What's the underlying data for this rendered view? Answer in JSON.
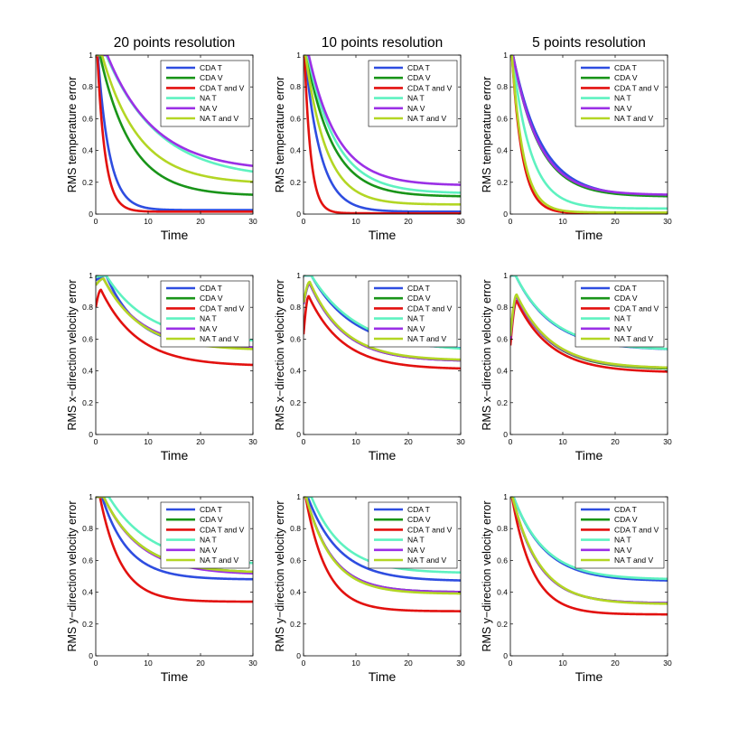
{
  "figure": {
    "column_titles": [
      "20 points resolution",
      "10 points resolution",
      "5 points resolution"
    ],
    "row_ylabels": [
      "RMS temperature error",
      "RMS x−direction velocity error",
      "RMS y−direction velocity error"
    ],
    "xlabel": "Time"
  },
  "colors": {
    "CDA T": "#2e4de0",
    "CDA V": "#199419",
    "CDA T and V": "#e2110f",
    "NA T": "#5ef2c0",
    "NA V": "#9b30e6",
    "NA T and V": "#b3d624"
  },
  "chart_data": [
    {
      "type": "line",
      "title": "20 points resolution",
      "xlabel": "Time",
      "ylabel": "RMS temperature error",
      "xlim": [
        0,
        30
      ],
      "ylim": [
        0,
        1
      ],
      "xticks": [
        0,
        10,
        20,
        30
      ],
      "yticks": [
        0,
        0.2,
        0.4,
        0.6,
        0.8,
        1
      ],
      "series": [
        {
          "name": "CDA T",
          "model": {
            "kind": "exp",
            "peak": 1,
            "tpeak": 0.4,
            "final": 0.025,
            "tau": 2.2
          }
        },
        {
          "name": "CDA V",
          "model": {
            "kind": "exp",
            "peak": 1,
            "tpeak": 0.8,
            "final": 0.115,
            "tau": 6
          }
        },
        {
          "name": "CDA T and V",
          "model": {
            "kind": "exp",
            "peak": 1,
            "tpeak": 0.3,
            "final": 0.015,
            "tau": 1.5
          }
        },
        {
          "name": "NA T",
          "model": {
            "kind": "exp",
            "peak": 1,
            "tpeak": 2,
            "final": 0.22,
            "tau": 10
          }
        },
        {
          "name": "NA V",
          "model": {
            "kind": "exp",
            "peak": 1,
            "tpeak": 2.2,
            "final": 0.27,
            "tau": 9
          }
        },
        {
          "name": "NA T and V",
          "model": {
            "kind": "exp",
            "peak": 1,
            "tpeak": 1.2,
            "final": 0.19,
            "tau": 7
          }
        }
      ]
    },
    {
      "type": "line",
      "title": "10 points resolution",
      "xlabel": "Time",
      "ylabel": "RMS temperature error",
      "xlim": [
        0,
        30
      ],
      "ylim": [
        0,
        1
      ],
      "xticks": [
        0,
        10,
        20,
        30
      ],
      "yticks": [
        0,
        0.2,
        0.4,
        0.6,
        0.8,
        1
      ],
      "series": [
        {
          "name": "CDA T",
          "model": {
            "kind": "exp",
            "peak": 1,
            "tpeak": 0.3,
            "final": 0.015,
            "tau": 3
          }
        },
        {
          "name": "CDA V",
          "model": {
            "kind": "exp",
            "peak": 1,
            "tpeak": 0.6,
            "final": 0.11,
            "tau": 5
          }
        },
        {
          "name": "CDA T and V",
          "model": {
            "kind": "exp",
            "peak": 1,
            "tpeak": 0.2,
            "final": 0.005,
            "tau": 1.2
          }
        },
        {
          "name": "NA T",
          "model": {
            "kind": "exp",
            "peak": 1,
            "tpeak": 0.8,
            "final": 0.13,
            "tau": 5.5
          }
        },
        {
          "name": "NA V",
          "model": {
            "kind": "exp",
            "peak": 1,
            "tpeak": 1,
            "final": 0.18,
            "tau": 5.5
          }
        },
        {
          "name": "NA T and V",
          "model": {
            "kind": "exp",
            "peak": 1,
            "tpeak": 0.4,
            "final": 0.06,
            "tau": 4
          }
        }
      ]
    },
    {
      "type": "line",
      "title": "5 points resolution",
      "xlabel": "Time",
      "ylabel": "RMS temperature error",
      "xlim": [
        0,
        30
      ],
      "ylim": [
        0,
        1
      ],
      "xticks": [
        0,
        10,
        20,
        30
      ],
      "yticks": [
        0,
        0.2,
        0.4,
        0.6,
        0.8,
        1
      ],
      "series": [
        {
          "name": "CDA T",
          "model": {
            "kind": "exp",
            "peak": 1,
            "tpeak": 0.5,
            "final": 0.11,
            "tau": 5.5
          }
        },
        {
          "name": "CDA V",
          "model": {
            "kind": "exp",
            "peak": 1,
            "tpeak": 0.5,
            "final": 0.11,
            "tau": 5
          }
        },
        {
          "name": "CDA T and V",
          "model": {
            "kind": "exp",
            "peak": 1,
            "tpeak": 0.3,
            "final": 0.005,
            "tau": 2
          }
        },
        {
          "name": "NA T",
          "model": {
            "kind": "exp",
            "peak": 1,
            "tpeak": 0.4,
            "final": 0.035,
            "tau": 3.5
          }
        },
        {
          "name": "NA V",
          "model": {
            "kind": "exp",
            "peak": 1,
            "tpeak": 0.5,
            "final": 0.12,
            "tau": 5
          }
        },
        {
          "name": "NA T and V",
          "model": {
            "kind": "exp",
            "peak": 1,
            "tpeak": 0.3,
            "final": 0.01,
            "tau": 2.2
          }
        }
      ]
    },
    {
      "type": "line",
      "title": "",
      "xlabel": "Time",
      "ylabel": "RMS x−direction velocity error",
      "xlim": [
        0,
        30
      ],
      "ylim": [
        0,
        1
      ],
      "xticks": [
        0,
        10,
        20,
        30
      ],
      "yticks": [
        0,
        0.2,
        0.4,
        0.6,
        0.8,
        1
      ],
      "series": [
        {
          "name": "CDA T",
          "model": {
            "kind": "hump",
            "start": 0.97,
            "peak": 1,
            "tpeak": 2,
            "final": 0.54,
            "tau": 6
          }
        },
        {
          "name": "CDA V",
          "model": {
            "kind": "hump",
            "start": 0.94,
            "peak": 0.98,
            "tpeak": 1.5,
            "final": 0.54,
            "tau": 7
          }
        },
        {
          "name": "CDA T and V",
          "model": {
            "kind": "hump",
            "start": 0.8,
            "peak": 0.91,
            "tpeak": 1,
            "final": 0.43,
            "tau": 7
          }
        },
        {
          "name": "NA T",
          "model": {
            "kind": "hump",
            "start": 0.99,
            "peak": 1,
            "tpeak": 2,
            "final": 0.58,
            "tau": 8
          }
        },
        {
          "name": "NA V",
          "model": {
            "kind": "hump",
            "start": 0.94,
            "peak": 0.98,
            "tpeak": 1.5,
            "final": 0.54,
            "tau": 7
          }
        },
        {
          "name": "NA T and V",
          "model": {
            "kind": "hump",
            "start": 0.94,
            "peak": 0.98,
            "tpeak": 1.5,
            "final": 0.53,
            "tau": 7
          }
        }
      ]
    },
    {
      "type": "line",
      "title": "",
      "xlabel": "Time",
      "ylabel": "RMS x−direction velocity error",
      "xlim": [
        0,
        30
      ],
      "ylim": [
        0,
        1
      ],
      "xticks": [
        0,
        10,
        20,
        30
      ],
      "yticks": [
        0,
        0.2,
        0.4,
        0.6,
        0.8,
        1
      ],
      "series": [
        {
          "name": "CDA T",
          "model": {
            "kind": "hump",
            "start": 1,
            "peak": 1,
            "tpeak": 1.5,
            "final": 0.53,
            "tau": 8
          }
        },
        {
          "name": "CDA V",
          "model": {
            "kind": "hump",
            "start": 0.82,
            "peak": 0.95,
            "tpeak": 1.2,
            "final": 0.46,
            "tau": 6.5
          }
        },
        {
          "name": "CDA T and V",
          "model": {
            "kind": "hump",
            "start": 0.63,
            "peak": 0.87,
            "tpeak": 1,
            "final": 0.41,
            "tau": 6.5
          }
        },
        {
          "name": "NA T",
          "model": {
            "kind": "hump",
            "start": 1,
            "peak": 1,
            "tpeak": 1.5,
            "final": 0.52,
            "tau": 9
          }
        },
        {
          "name": "NA V",
          "model": {
            "kind": "hump",
            "start": 0.82,
            "peak": 0.95,
            "tpeak": 1.2,
            "final": 0.46,
            "tau": 6.5
          }
        },
        {
          "name": "NA T and V",
          "model": {
            "kind": "hump",
            "start": 0.83,
            "peak": 0.96,
            "tpeak": 1.2,
            "final": 0.465,
            "tau": 6.5
          }
        }
      ]
    },
    {
      "type": "line",
      "title": "",
      "xlabel": "Time",
      "ylabel": "RMS x−direction velocity error",
      "xlim": [
        0,
        30
      ],
      "ylim": [
        0,
        1
      ],
      "xticks": [
        0,
        10,
        20,
        30
      ],
      "yticks": [
        0,
        0.2,
        0.4,
        0.6,
        0.8,
        1
      ],
      "series": [
        {
          "name": "CDA T",
          "model": {
            "kind": "hump",
            "start": 1,
            "peak": 1,
            "tpeak": 1,
            "final": 0.53,
            "tau": 7
          }
        },
        {
          "name": "CDA V",
          "model": {
            "kind": "hump",
            "start": 0.6,
            "peak": 0.87,
            "tpeak": 1.2,
            "final": 0.41,
            "tau": 6.5
          }
        },
        {
          "name": "CDA T and V",
          "model": {
            "kind": "hump",
            "start": 0.56,
            "peak": 0.84,
            "tpeak": 1.2,
            "final": 0.39,
            "tau": 6.5
          }
        },
        {
          "name": "NA T",
          "model": {
            "kind": "hump",
            "start": 1,
            "peak": 1,
            "tpeak": 1,
            "final": 0.53,
            "tau": 7.2
          }
        },
        {
          "name": "NA V",
          "model": {
            "kind": "hump",
            "start": 0.6,
            "peak": 0.87,
            "tpeak": 1.2,
            "final": 0.415,
            "tau": 6.5
          }
        },
        {
          "name": "NA T and V",
          "model": {
            "kind": "hump",
            "start": 0.62,
            "peak": 0.88,
            "tpeak": 1.2,
            "final": 0.415,
            "tau": 6.6
          }
        }
      ]
    },
    {
      "type": "line",
      "title": "",
      "xlabel": "Time",
      "ylabel": "RMS y−direction velocity error",
      "xlim": [
        0,
        30
      ],
      "ylim": [
        0,
        1
      ],
      "xticks": [
        0,
        10,
        20,
        30
      ],
      "yticks": [
        0,
        0.2,
        0.4,
        0.6,
        0.8,
        1
      ],
      "series": [
        {
          "name": "CDA T",
          "model": {
            "kind": "exp",
            "peak": 1,
            "tpeak": 1.2,
            "final": 0.48,
            "tau": 5
          }
        },
        {
          "name": "CDA V",
          "model": {
            "kind": "exp",
            "peak": 1,
            "tpeak": 1.5,
            "final": 0.52,
            "tau": 7
          }
        },
        {
          "name": "CDA T and V",
          "model": {
            "kind": "exp",
            "peak": 1,
            "tpeak": 0.8,
            "final": 0.34,
            "tau": 4
          }
        },
        {
          "name": "NA T",
          "model": {
            "kind": "exp",
            "peak": 1,
            "tpeak": 2.5,
            "final": 0.57,
            "tau": 8
          }
        },
        {
          "name": "NA V",
          "model": {
            "kind": "exp",
            "peak": 1,
            "tpeak": 1.5,
            "final": 0.51,
            "tau": 7
          }
        },
        {
          "name": "NA T and V",
          "model": {
            "kind": "exp",
            "peak": 1,
            "tpeak": 1.5,
            "final": 0.52,
            "tau": 7
          }
        }
      ]
    },
    {
      "type": "line",
      "title": "",
      "xlabel": "Time",
      "ylabel": "RMS y−direction velocity error",
      "xlim": [
        0,
        30
      ],
      "ylim": [
        0,
        1
      ],
      "xticks": [
        0,
        10,
        20,
        30
      ],
      "yticks": [
        0,
        0.2,
        0.4,
        0.6,
        0.8,
        1
      ],
      "series": [
        {
          "name": "CDA T",
          "model": {
            "kind": "exp",
            "peak": 1,
            "tpeak": 0.8,
            "final": 0.47,
            "tau": 6
          }
        },
        {
          "name": "CDA V",
          "model": {
            "kind": "exp",
            "peak": 1,
            "tpeak": 0.5,
            "final": 0.4,
            "tau": 5
          }
        },
        {
          "name": "CDA T and V",
          "model": {
            "kind": "exp",
            "peak": 1,
            "tpeak": 0.4,
            "final": 0.28,
            "tau": 4
          }
        },
        {
          "name": "NA T",
          "model": {
            "kind": "exp",
            "peak": 1,
            "tpeak": 1.5,
            "final": 0.52,
            "tau": 6
          }
        },
        {
          "name": "NA V",
          "model": {
            "kind": "exp",
            "peak": 1,
            "tpeak": 0.5,
            "final": 0.4,
            "tau": 5
          }
        },
        {
          "name": "NA T and V",
          "model": {
            "kind": "exp",
            "peak": 1,
            "tpeak": 0.5,
            "final": 0.39,
            "tau": 5
          }
        }
      ]
    },
    {
      "type": "line",
      "title": "",
      "xlabel": "Time",
      "ylabel": "RMS y−direction velocity error",
      "xlim": [
        0,
        30
      ],
      "ylim": [
        0,
        1
      ],
      "xticks": [
        0,
        10,
        20,
        30
      ],
      "yticks": [
        0,
        0.2,
        0.4,
        0.6,
        0.8,
        1
      ],
      "series": [
        {
          "name": "CDA T",
          "model": {
            "kind": "exp",
            "peak": 1,
            "tpeak": 0.6,
            "final": 0.47,
            "tau": 6
          }
        },
        {
          "name": "CDA V",
          "model": {
            "kind": "exp",
            "peak": 1,
            "tpeak": 0.4,
            "final": 0.33,
            "tau": 5
          }
        },
        {
          "name": "CDA T and V",
          "model": {
            "kind": "exp",
            "peak": 1,
            "tpeak": 0.3,
            "final": 0.26,
            "tau": 4
          }
        },
        {
          "name": "NA T",
          "model": {
            "kind": "exp",
            "peak": 1,
            "tpeak": 0.6,
            "final": 0.48,
            "tau": 6
          }
        },
        {
          "name": "NA V",
          "model": {
            "kind": "exp",
            "peak": 1,
            "tpeak": 0.4,
            "final": 0.33,
            "tau": 5
          }
        },
        {
          "name": "NA T and V",
          "model": {
            "kind": "exp",
            "peak": 1,
            "tpeak": 0.4,
            "final": 0.325,
            "tau": 5.2
          }
        }
      ]
    }
  ]
}
